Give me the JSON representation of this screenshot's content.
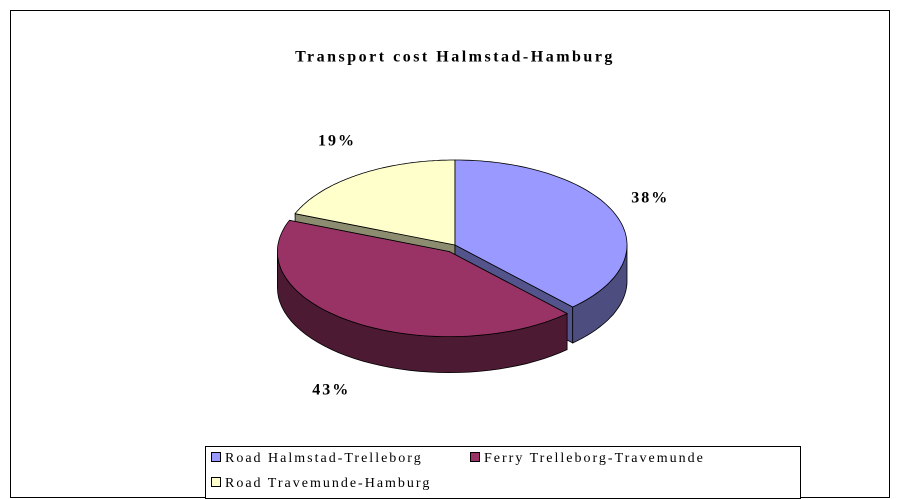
{
  "chart_data": {
    "type": "pie",
    "title": "Transport cost Halmstad-Hamburg",
    "categories": [
      "Road Halmstad-Trelleborg",
      "Ferry Trelleborg-Travemunde",
      "Road Travemunde-Hamburg"
    ],
    "values": [
      38,
      43,
      19
    ],
    "value_labels": [
      "38%",
      "43%",
      "19%"
    ],
    "colors": [
      "#9999ff",
      "#993366",
      "#ffffcc"
    ]
  }
}
